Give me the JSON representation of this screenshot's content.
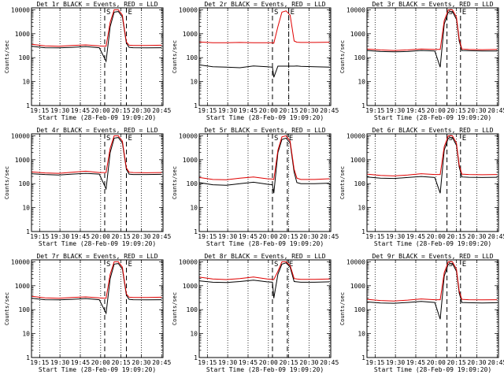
{
  "figure": {
    "x_ticklabels": [
      "19:15",
      "19:30",
      "19:45",
      "20:00",
      "20:15",
      "20:30",
      "20:45"
    ],
    "y_ticklabels": [
      "1",
      "10",
      "100",
      "1000",
      "10000"
    ],
    "xlabel": "Start Time (28-Feb-09 19:09:20)",
    "ylabel": "Counts/sec",
    "event_markers": [
      "S",
      "E"
    ],
    "colors": {
      "events": "#000000",
      "lld": "#e00000",
      "axes": "#000000",
      "background": "#ffffff"
    }
  },
  "chart_data": [
    {
      "type": "line",
      "title": "Det 1r BLACK = Events, RED = LLD",
      "xlabel": "Start Time (28-Feb-09 19:09:20)",
      "ylabel": "Counts/sec",
      "x_unit": "minutes after 19:09:20",
      "xlim": [
        0,
        97
      ],
      "ylim": [
        1,
        12000
      ],
      "yscale": "log",
      "x_ticks": [
        6,
        21,
        36,
        51,
        66,
        81,
        96
      ],
      "x": [
        0,
        10,
        20,
        30,
        40,
        50,
        55,
        58,
        61,
        64,
        67,
        70,
        72,
        75,
        85,
        96
      ],
      "series": [
        {
          "name": "Events",
          "color": "#000000",
          "values": [
            300,
            260,
            255,
            270,
            290,
            260,
            70,
            2000,
            8000,
            8500,
            5000,
            400,
            270,
            260,
            255,
            260
          ]
        },
        {
          "name": "LLD",
          "color": "#e00000",
          "values": [
            360,
            310,
            300,
            320,
            340,
            310,
            300,
            3000,
            10000,
            10000,
            6000,
            450,
            330,
            320,
            320,
            330
          ]
        }
      ],
      "markers": {
        "S": 54,
        "E": 70
      }
    },
    {
      "type": "line",
      "title": "Det 2r BLACK = Events, RED = LLD",
      "xlabel": "Start Time (28-Feb-09 19:09:20)",
      "ylabel": "Counts/sec",
      "x_unit": "minutes after 19:09:20",
      "xlim": [
        0,
        97
      ],
      "ylim": [
        1,
        12000
      ],
      "yscale": "log",
      "x_ticks": [
        6,
        21,
        36,
        51,
        66,
        81,
        96
      ],
      "x": [
        0,
        10,
        20,
        30,
        40,
        50,
        54,
        55,
        58,
        61,
        64,
        67,
        70,
        72,
        75,
        85,
        96
      ],
      "series": [
        {
          "name": "Events",
          "color": "#000000",
          "values": [
            50,
            42,
            40,
            38,
            45,
            42,
            40,
            15,
            44,
            44,
            44,
            44,
            44,
            45,
            43,
            42,
            40
          ]
        },
        {
          "name": "LLD",
          "color": "#e00000",
          "values": [
            450,
            420,
            420,
            430,
            420,
            420,
            420,
            400,
            2000,
            8000,
            9000,
            6000,
            500,
            440,
            430,
            430,
            440
          ]
        }
      ],
      "markers": {
        "S": 54,
        "E": 66
      }
    },
    {
      "type": "line",
      "title": "Det 3r BLACK = Events, RED = LLD",
      "xlabel": "Start Time (28-Feb-09 19:09:20)",
      "ylabel": "Counts/sec",
      "x_unit": "minutes after 19:09:20",
      "xlim": [
        0,
        97
      ],
      "ylim": [
        1,
        12000
      ],
      "yscale": "log",
      "x_ticks": [
        6,
        21,
        36,
        51,
        66,
        81,
        96
      ],
      "x": [
        0,
        10,
        20,
        30,
        40,
        50,
        54,
        57,
        60,
        63,
        66,
        68,
        70,
        75,
        85,
        96
      ],
      "series": [
        {
          "name": "Events",
          "color": "#000000",
          "values": [
            200,
            180,
            175,
            180,
            200,
            190,
            40,
            2500,
            8000,
            8500,
            4000,
            500,
            200,
            195,
            190,
            190
          ]
        },
        {
          "name": "LLD",
          "color": "#e00000",
          "values": [
            230,
            210,
            200,
            210,
            230,
            220,
            220,
            3500,
            10000,
            10000,
            5000,
            600,
            230,
            220,
            215,
            220
          ]
        }
      ],
      "markers": {
        "S": 59,
        "E": 69
      }
    },
    {
      "type": "line",
      "title": "Det 4r BLACK = Events, RED = LLD",
      "xlabel": "Start Time (28-Feb-09 19:09:20)",
      "ylabel": "Counts/sec",
      "x_unit": "minutes after 19:09:20",
      "xlim": [
        0,
        97
      ],
      "ylim": [
        1,
        12000
      ],
      "yscale": "log",
      "x_ticks": [
        6,
        21,
        36,
        51,
        66,
        81,
        96
      ],
      "x": [
        0,
        10,
        20,
        30,
        40,
        50,
        55,
        58,
        61,
        64,
        67,
        70,
        72,
        75,
        85,
        96
      ],
      "series": [
        {
          "name": "Events",
          "color": "#000000",
          "values": [
            260,
            240,
            230,
            250,
            270,
            250,
            60,
            2000,
            8000,
            8500,
            5000,
            400,
            250,
            240,
            240,
            245
          ]
        },
        {
          "name": "LLD",
          "color": "#e00000",
          "values": [
            310,
            280,
            270,
            300,
            330,
            290,
            290,
            3000,
            10000,
            10000,
            6000,
            450,
            300,
            290,
            285,
            290
          ]
        }
      ],
      "markers": {
        "S": 54,
        "E": 70
      }
    },
    {
      "type": "line",
      "title": "Det 5r BLACK = Events, RED = LLD",
      "xlabel": "Start Time (28-Feb-09 19:09:20)",
      "ylabel": "Counts/sec",
      "x_unit": "minutes after 19:09:20",
      "xlim": [
        0,
        97
      ],
      "ylim": [
        1,
        12000
      ],
      "yscale": "log",
      "x_ticks": [
        6,
        21,
        36,
        51,
        66,
        81,
        96
      ],
      "x": [
        0,
        10,
        20,
        30,
        40,
        50,
        54,
        55,
        58,
        61,
        64,
        67,
        70,
        72,
        75,
        85,
        96
      ],
      "series": [
        {
          "name": "Events",
          "color": "#000000",
          "values": [
            110,
            90,
            85,
            100,
            115,
            95,
            90,
            40,
            2000,
            7000,
            8000,
            5000,
            300,
            110,
            100,
            100,
            105
          ]
        },
        {
          "name": "LLD",
          "color": "#e00000",
          "values": [
            180,
            150,
            145,
            170,
            190,
            160,
            155,
            150,
            2500,
            9000,
            10000,
            6000,
            400,
            170,
            150,
            150,
            160
          ]
        }
      ],
      "markers": {
        "S": 54,
        "E": 65
      }
    },
    {
      "type": "line",
      "title": "Det 6r BLACK = Events, RED = LLD",
      "xlabel": "Start Time (28-Feb-09 19:09:20)",
      "ylabel": "Counts/sec",
      "x_unit": "minutes after 19:09:20",
      "xlim": [
        0,
        97
      ],
      "ylim": [
        1,
        12000
      ],
      "yscale": "log",
      "x_ticks": [
        6,
        21,
        36,
        51,
        66,
        81,
        96
      ],
      "x": [
        0,
        10,
        20,
        30,
        40,
        50,
        54,
        57,
        60,
        63,
        66,
        68,
        70,
        75,
        85,
        96
      ],
      "series": [
        {
          "name": "Events",
          "color": "#000000",
          "values": [
            190,
            170,
            165,
            180,
            200,
            180,
            40,
            2500,
            8000,
            8500,
            4000,
            500,
            190,
            185,
            180,
            185
          ]
        },
        {
          "name": "LLD",
          "color": "#e00000",
          "values": [
            250,
            220,
            210,
            230,
            260,
            240,
            240,
            3500,
            10000,
            10000,
            5000,
            600,
            250,
            240,
            235,
            240
          ]
        }
      ],
      "markers": {
        "S": 59,
        "E": 69
      }
    },
    {
      "type": "line",
      "title": "Det 7r BLACK = Events, RED = LLD",
      "xlabel": "Start Time (28-Feb-09 19:09:20)",
      "ylabel": "Counts/sec",
      "x_unit": "minutes after 19:09:20",
      "xlim": [
        0,
        97
      ],
      "ylim": [
        1,
        12000
      ],
      "yscale": "log",
      "x_ticks": [
        6,
        21,
        36,
        51,
        66,
        81,
        96
      ],
      "x": [
        0,
        10,
        20,
        30,
        40,
        50,
        55,
        58,
        61,
        64,
        67,
        70,
        72,
        75,
        85,
        96
      ],
      "series": [
        {
          "name": "Events",
          "color": "#000000",
          "values": [
            300,
            260,
            255,
            270,
            290,
            260,
            70,
            2000,
            8000,
            8500,
            5000,
            400,
            270,
            260,
            255,
            260
          ]
        },
        {
          "name": "LLD",
          "color": "#e00000",
          "values": [
            360,
            310,
            300,
            320,
            340,
            310,
            300,
            3000,
            10000,
            10000,
            6000,
            450,
            330,
            320,
            320,
            330
          ]
        }
      ],
      "markers": {
        "S": 54,
        "E": 70
      }
    },
    {
      "type": "line",
      "title": "Det 8r BLACK = Events, RED = LLD",
      "xlabel": "Start Time (28-Feb-09 19:09:20)",
      "ylabel": "Counts/sec",
      "x_unit": "minutes after 19:09:20",
      "xlim": [
        0,
        97
      ],
      "ylim": [
        1,
        12000
      ],
      "yscale": "log",
      "x_ticks": [
        6,
        21,
        36,
        51,
        66,
        81,
        96
      ],
      "x": [
        0,
        10,
        20,
        30,
        40,
        50,
        54,
        55,
        58,
        61,
        64,
        67,
        70,
        72,
        75,
        85,
        96
      ],
      "series": [
        {
          "name": "Events",
          "color": "#000000",
          "values": [
            1600,
            1400,
            1350,
            1500,
            1700,
            1450,
            1400,
            300,
            3000,
            8000,
            9000,
            6000,
            1500,
            1450,
            1400,
            1400,
            1450
          ]
        },
        {
          "name": "LLD",
          "color": "#e00000",
          "values": [
            2300,
            1900,
            1800,
            2000,
            2300,
            1900,
            1850,
            1800,
            4000,
            10000,
            10000,
            7000,
            2000,
            1900,
            1850,
            1850,
            1900
          ]
        }
      ],
      "markers": {
        "S": 54,
        "E": 65
      }
    },
    {
      "type": "line",
      "title": "Det 9r BLACK = Events, RED = LLD",
      "xlabel": "Start Time (28-Feb-09 19:09:20)",
      "ylabel": "Counts/sec",
      "x_unit": "minutes after 19:09:20",
      "xlim": [
        0,
        97
      ],
      "ylim": [
        1,
        12000
      ],
      "yscale": "log",
      "x_ticks": [
        6,
        21,
        36,
        51,
        66,
        81,
        96
      ],
      "x": [
        0,
        10,
        20,
        30,
        40,
        50,
        54,
        57,
        60,
        63,
        66,
        68,
        70,
        75,
        85,
        96
      ],
      "series": [
        {
          "name": "Events",
          "color": "#000000",
          "values": [
            210,
            190,
            185,
            200,
            220,
            200,
            40,
            2500,
            8000,
            8500,
            4000,
            500,
            200,
            195,
            190,
            195
          ]
        },
        {
          "name": "LLD",
          "color": "#e00000",
          "values": [
            270,
            240,
            230,
            250,
            280,
            260,
            260,
            3500,
            10000,
            10000,
            5000,
            600,
            270,
            260,
            255,
            260
          ]
        }
      ],
      "markers": {
        "S": 59,
        "E": 69
      }
    }
  ]
}
